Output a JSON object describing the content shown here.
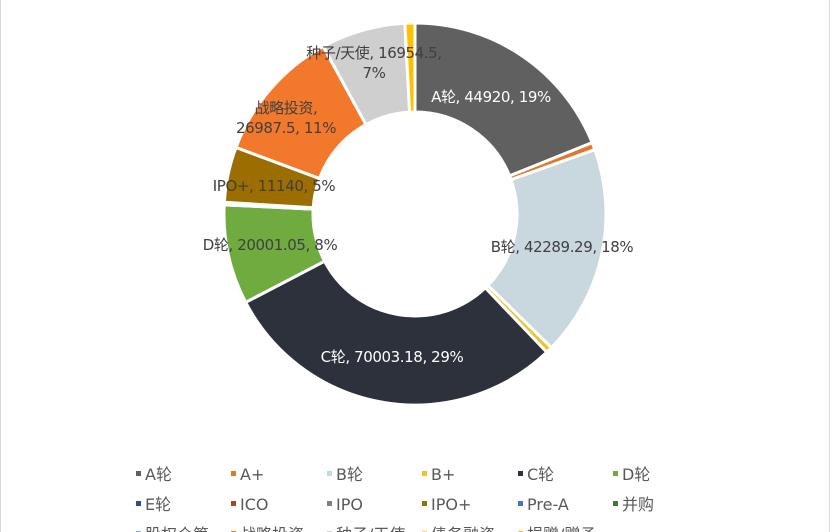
{
  "chart_data": {
    "type": "pie",
    "variant": "donut",
    "title": "",
    "legend_position": "bottom",
    "slices": [
      {
        "name": "A轮",
        "value": 44920,
        "color": "#606060",
        "label": "A轮, 44920, 19%",
        "label_color": "#ffffff"
      },
      {
        "name": "A+",
        "value": 1500,
        "color": "#e0782e",
        "label": "",
        "label_color": "#404040"
      },
      {
        "name": "B轮",
        "value": 42289.29,
        "color": "#c9d7de",
        "label": "B轮, 42289.29, 18%",
        "label_color": "#404040"
      },
      {
        "name": "B+",
        "value": 1300,
        "color": "#f2c02e",
        "label": "",
        "label_color": "#404040"
      },
      {
        "name": "C轮",
        "value": 70003.18,
        "color": "#2d313b",
        "label": "C轮, 70003.18, 29%",
        "label_color": "#ffffff"
      },
      {
        "name": "D轮",
        "value": 20001.05,
        "color": "#6fab3f",
        "label": "D轮, 20001.05, 8%",
        "label_color": "#404040"
      },
      {
        "name": "E轮",
        "value": 0,
        "color": "#2e4d8a",
        "label": "",
        "label_color": "#404040"
      },
      {
        "name": "ICO",
        "value": 500,
        "color": "#9e4a1f",
        "label": "",
        "label_color": "#404040"
      },
      {
        "name": "IPO",
        "value": 0,
        "color": "#7f7f7f",
        "label": "",
        "label_color": "#404040"
      },
      {
        "name": "IPO+",
        "value": 11140,
        "color": "#9c6d00",
        "label": "IPO+, 11140, 5%",
        "label_color": "#404040"
      },
      {
        "name": "Pre-A",
        "value": 0,
        "color": "#3f76c4",
        "label": "",
        "label_color": "#404040"
      },
      {
        "name": "并购",
        "value": 0,
        "color": "#3f7a2a",
        "label": "",
        "label_color": "#404040"
      },
      {
        "name": "股权众筹",
        "value": 0,
        "color": "#8fa9d9",
        "label": "",
        "label_color": "#404040"
      },
      {
        "name": "战略投资",
        "value": 26987.5,
        "color": "#f2792c",
        "label": "战略投资,\n26987.5, 11%",
        "label_color": "#404040"
      },
      {
        "name": "种子/天使",
        "value": 16954.5,
        "color": "#cfcfcf",
        "label": "种子/天使, 16954.5,\n7%",
        "label_color": "#404040"
      },
      {
        "name": "债务融资",
        "value": 0,
        "color": "#f5d07a",
        "label": "",
        "label_color": "#404040"
      },
      {
        "name": "捐赠/赠予",
        "value": 2000,
        "color": "#ffc000",
        "label": "",
        "label_color": "#404040"
      }
    ],
    "legend_rows": [
      [
        "A轮",
        "A+",
        "B轮",
        "B+",
        "C轮",
        "D轮"
      ],
      [
        "E轮",
        "ICO",
        "IPO",
        "IPO+",
        "Pre-A",
        "并购"
      ],
      [
        "股权众筹",
        "战略投资",
        "种子/天使",
        "债务融资",
        "捐赠/赠予"
      ]
    ]
  }
}
